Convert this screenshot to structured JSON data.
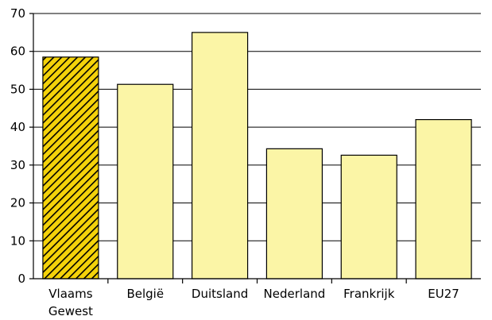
{
  "chart_data": {
    "type": "bar",
    "categories": [
      [
        "Vlaams",
        "Gewest"
      ],
      [
        "België"
      ],
      [
        "Duitsland"
      ],
      [
        "Nederland"
      ],
      [
        "Frankrijk"
      ],
      [
        "EU27"
      ]
    ],
    "values": [
      58.5,
      51.3,
      65.0,
      34.3,
      32.6,
      42.0
    ],
    "ylim": [
      0,
      70
    ],
    "yticks": [
      0,
      10,
      20,
      30,
      40,
      50,
      60,
      70
    ],
    "grid": true,
    "title": "",
    "xlabel": "",
    "ylabel": "",
    "colors": {
      "bar_fill": "#fbf5a6",
      "highlight_fill": "#f4d20a",
      "highlight_hatch": "#000000",
      "stroke": "#000000"
    },
    "highlight_index": 0
  }
}
